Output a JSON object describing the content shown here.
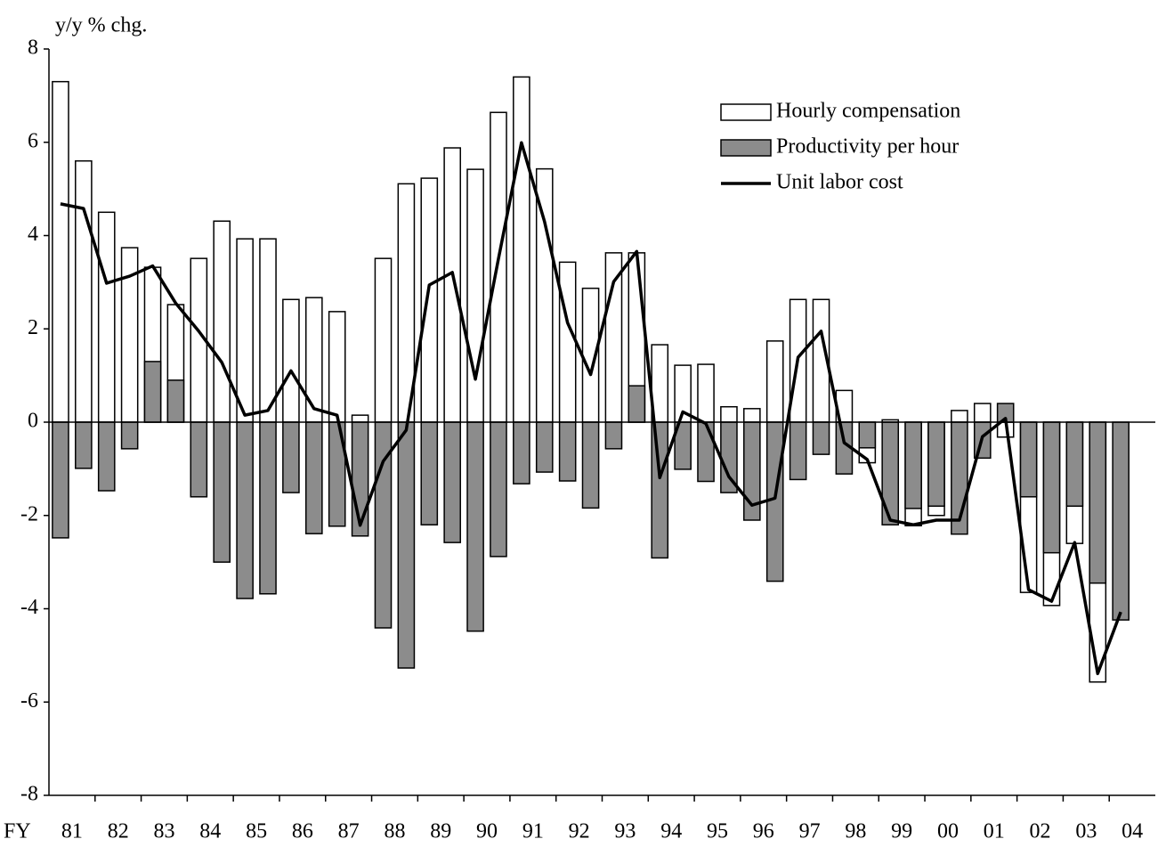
{
  "chart_data": {
    "type": "bar",
    "y_label": "y/y % chg.",
    "x_label": "FY",
    "categories": [
      "81",
      null,
      "82",
      null,
      "83",
      null,
      "84",
      null,
      "85",
      null,
      "86",
      null,
      "87",
      null,
      "88",
      null,
      "89",
      null,
      "90",
      null,
      "91",
      null,
      "92",
      null,
      "93",
      null,
      "94",
      null,
      "95",
      null,
      "96",
      null,
      "97",
      null,
      "98",
      null,
      "99",
      null,
      "00",
      null,
      "01",
      null,
      "02",
      null,
      "03",
      null,
      "04",
      null
    ],
    "series": [
      {
        "name": "Hourly compensation",
        "type": "bar",
        "color": "#ffffff",
        "values": [
          7.3,
          5.6,
          4.5,
          3.74,
          3.32,
          2.52,
          3.51,
          4.31,
          3.93,
          3.93,
          2.63,
          2.67,
          2.37,
          0.15,
          3.51,
          5.11,
          5.23,
          5.88,
          5.42,
          6.64,
          7.4,
          5.43,
          3.43,
          2.87,
          3.63,
          3.63,
          1.66,
          1.22,
          1.24,
          0.33,
          0.29,
          1.74,
          2.63,
          2.63,
          0.68,
          -0.87,
          0.05,
          -2.22,
          -2.0,
          0.25,
          0.4,
          -0.32,
          -3.65,
          -3.93,
          -2.6,
          -5.57,
          0,
          null
        ]
      },
      {
        "name": "Productivity per hour",
        "type": "bar",
        "color": "#8c8c8c",
        "values": [
          -2.48,
          -0.99,
          -1.47,
          -0.57,
          1.3,
          0.9,
          -1.6,
          -3.0,
          -3.78,
          -3.68,
          -1.51,
          -2.39,
          -2.23,
          -2.44,
          -4.41,
          -5.27,
          -2.2,
          -2.58,
          -4.48,
          -2.88,
          -1.32,
          -1.07,
          -1.26,
          -1.84,
          -0.57,
          0.78,
          -2.91,
          -1.01,
          -1.27,
          -1.51,
          -2.1,
          -3.41,
          -1.23,
          -0.69,
          -1.11,
          -0.55,
          -2.2,
          -1.85,
          -1.8,
          -2.4,
          -0.77,
          0.4,
          -1.6,
          -2.8,
          -1.8,
          -3.45,
          -4.24,
          null
        ]
      },
      {
        "name": "Unit labor cost",
        "type": "line",
        "color": "#000000",
        "values": [
          4.68,
          4.58,
          2.98,
          3.13,
          3.35,
          2.55,
          1.95,
          1.28,
          0.15,
          0.25,
          1.1,
          0.29,
          0.15,
          -2.21,
          -0.84,
          -0.17,
          2.94,
          3.21,
          0.92,
          3.5,
          5.99,
          4.3,
          2.13,
          1.02,
          3.01,
          3.66,
          -1.19,
          0.22,
          -0.03,
          -1.17,
          -1.78,
          -1.63,
          1.39,
          1.95,
          -0.44,
          -0.8,
          -2.1,
          -2.2,
          -2.1,
          -2.1,
          -0.31,
          0.08,
          -3.59,
          -3.84,
          -2.58,
          -5.39,
          -4.07,
          null
        ]
      }
    ],
    "ylim": [
      -8,
      8
    ],
    "yticks": [
      -8,
      -6,
      -4,
      -2,
      0,
      2,
      4,
      6,
      8
    ],
    "grid": false,
    "legend": "upper right"
  }
}
